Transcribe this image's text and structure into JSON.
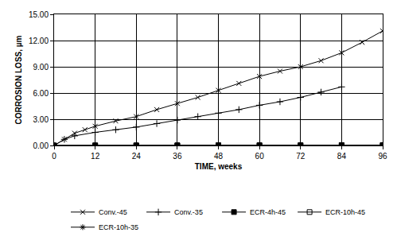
{
  "chart_data": {
    "type": "line",
    "x_label": "TIME, weeks",
    "y_label": "CORROSION LOSS, µm",
    "xlim": [
      0,
      96
    ],
    "xticks": [
      0,
      12,
      24,
      36,
      48,
      60,
      72,
      84,
      96
    ],
    "ylim": [
      0,
      15
    ],
    "yticks": [
      {
        "value": 0,
        "label": "0.00"
      },
      {
        "value": 3,
        "label": "3.00"
      },
      {
        "value": 6,
        "label": "6.00"
      },
      {
        "value": 9,
        "label": "9.00"
      },
      {
        "value": 12,
        "label": "12.00"
      },
      {
        "value": 15,
        "label": "15.00"
      }
    ],
    "grid": true,
    "legend": "bottom",
    "series": [
      {
        "name": "Conv.-45",
        "color": "#000000",
        "marker": "x",
        "x": [
          0,
          3,
          6,
          9,
          12,
          18,
          24,
          30,
          36,
          42,
          48,
          54,
          60,
          66,
          72,
          78,
          84,
          90,
          96
        ],
        "values": [
          0,
          0.7,
          1.4,
          1.8,
          2.2,
          2.8,
          3.3,
          4.1,
          4.8,
          5.5,
          6.3,
          7.1,
          7.9,
          8.5,
          9.0,
          9.7,
          10.6,
          11.8,
          13.1
        ]
      },
      {
        "name": "Conv.-35",
        "color": "#000000",
        "marker": "cross",
        "x": [
          0,
          3,
          6,
          12,
          18,
          24,
          30,
          36,
          42,
          48,
          54,
          60,
          66,
          72,
          78,
          84
        ],
        "values": [
          0,
          0.7,
          1.1,
          1.5,
          1.8,
          2.1,
          2.5,
          2.9,
          3.3,
          3.7,
          4.1,
          4.6,
          5.0,
          5.5,
          6.1,
          6.7
        ]
      },
      {
        "name": "ECR-4h-45",
        "color": "#000000",
        "marker": "square",
        "x": [
          0,
          12,
          24,
          36,
          48,
          60,
          72,
          84,
          96
        ],
        "values": [
          0,
          0.01,
          0.01,
          0.02,
          0.02,
          0.03,
          0.03,
          0.04,
          0.05
        ]
      },
      {
        "name": "ECR-10h-45",
        "color": "#000000",
        "marker": "square-open",
        "x": [
          0,
          12,
          24,
          36,
          48,
          60,
          72,
          84,
          96
        ],
        "values": [
          0,
          0.01,
          0.01,
          0.01,
          0.02,
          0.02,
          0.02,
          0.03,
          0.03
        ]
      },
      {
        "name": "ECR-10h-35",
        "color": "#000000",
        "marker": "asterisk",
        "x": [
          0,
          12,
          24,
          36,
          48,
          60,
          72,
          84
        ],
        "values": [
          0,
          0.01,
          0.02,
          0.02,
          0.03,
          0.03,
          0.04,
          0.04
        ]
      }
    ]
  }
}
